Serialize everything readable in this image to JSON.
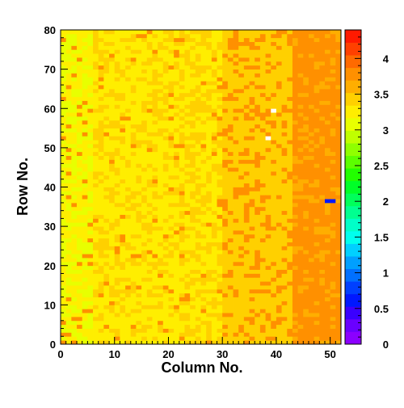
{
  "chart_data": {
    "type": "heatmap",
    "title": "",
    "xlabel": "Column No.",
    "ylabel": "Row No.",
    "xlim": [
      0,
      52
    ],
    "ylim": [
      0,
      80
    ],
    "x_ticks": [
      "0",
      "10",
      "20",
      "30",
      "40",
      "50"
    ],
    "y_ticks": [
      "0",
      "10",
      "20",
      "30",
      "40",
      "50",
      "60",
      "70",
      "80"
    ],
    "zlim": [
      0,
      4.4
    ],
    "z_ticks": [
      "0",
      "0.5",
      "1",
      "1.5",
      "2",
      "2.5",
      "3",
      "3.5",
      "4"
    ],
    "grid": false,
    "legend": "color-bar right",
    "n_columns": 52,
    "n_rows": 80,
    "value_trend": {
      "description": "values rise left to right",
      "col_0_to_5": 3.1,
      "col_10_to_25": 3.25,
      "col_30_to_40": 3.4,
      "col_45_to_51": 3.75
    },
    "special_cells": [
      {
        "col": 39,
        "row": 59,
        "value": 0,
        "state": "empty"
      },
      {
        "col": 38,
        "row": 52,
        "value": 0,
        "state": "empty"
      },
      {
        "col": 49,
        "row": 36,
        "value": 0.7
      },
      {
        "col": 50,
        "row": 36,
        "value": 0.7
      }
    ]
  },
  "palette": [
    "#8b00ff",
    "#6a00ff",
    "#3a00ff",
    "#0018ff",
    "#0040ff",
    "#0070ff",
    "#00a0ff",
    "#00d0ff",
    "#00ffee",
    "#00ffc8",
    "#00ff90",
    "#00ff5a",
    "#00ff28",
    "#22ff00",
    "#5cff00",
    "#90ff00",
    "#c0ff00",
    "#e8ff00",
    "#ffee00",
    "#ffd000",
    "#ffae00",
    "#ff9000",
    "#ff6a00",
    "#ff4000",
    "#ff1a00"
  ]
}
